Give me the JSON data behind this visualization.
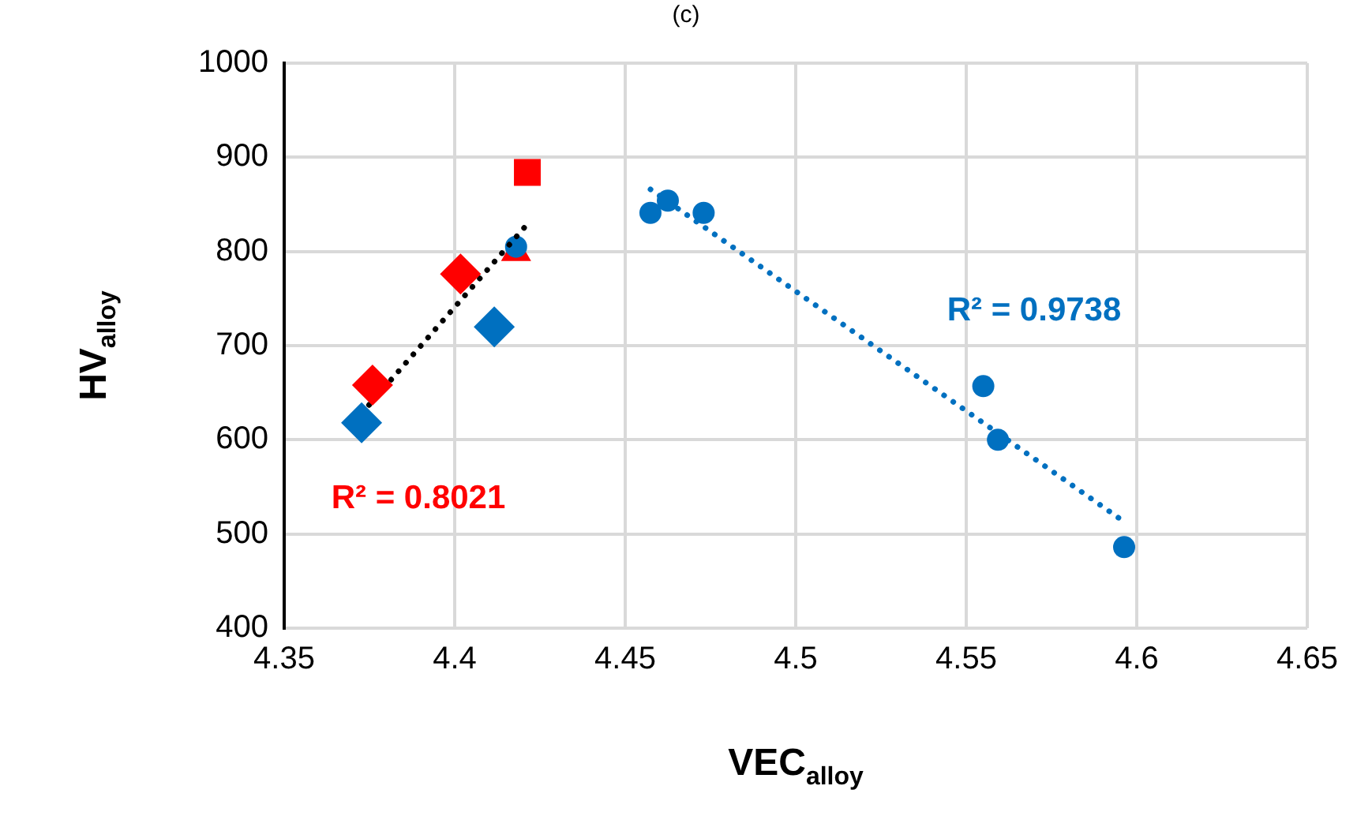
{
  "chart_data": {
    "type": "scatter",
    "title": "(c)",
    "xlabel": "VEC$_{alloy}$",
    "ylabel": "HV$_{alloy}$",
    "xlim": [
      4.35,
      4.65
    ],
    "xticks": [
      4.35,
      4.4,
      4.45,
      4.5,
      4.55,
      4.6,
      4.65
    ],
    "ylim": [
      400,
      1000
    ],
    "yticks": [
      400,
      500,
      600,
      700,
      800,
      900,
      1000
    ],
    "grid": true,
    "legend": false,
    "series": [
      {
        "color": "#0070c0",
        "marker": "diamond",
        "x": [
          4.3727,
          4.4116
        ],
        "values": [
          618,
          720
        ]
      },
      {
        "color": "#ff0000",
        "marker": "diamond",
        "x": [
          4.3759,
          4.4017
        ],
        "values": [
          658,
          776
        ]
      },
      {
        "color": "#ff0000",
        "marker": "square",
        "x": [
          4.4213
        ],
        "values": [
          884
        ]
      },
      {
        "type": "line",
        "color": "#000000",
        "marker": "none",
        "line_style": "dotted",
        "x": [
          4.3727,
          4.4213
        ],
        "values": [
          628,
          829
        ]
      },
      {
        "color": "#0070c0",
        "marker": "circle",
        "x": [
          4.418,
          4.4574,
          4.4625,
          4.473,
          4.555,
          4.5593,
          4.5963
        ],
        "values": [
          805,
          841,
          854,
          841,
          657,
          600,
          486
        ]
      },
      {
        "color": "#ff0000",
        "marker": "triangle",
        "x": [
          4.418
        ],
        "values": [
          799
        ]
      },
      {
        "type": "line",
        "color": "#0070c0",
        "marker": "none",
        "line_style": "dotted",
        "x": [
          4.4574,
          4.5963
        ],
        "values": [
          866,
          513
        ]
      }
    ],
    "annotations": [
      "R² = 0.8021",
      "R² = 0.9738"
    ]
  }
}
